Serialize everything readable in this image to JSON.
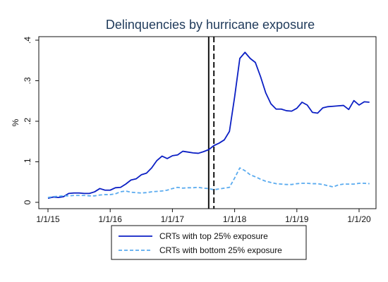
{
  "chart_data": {
    "type": "line",
    "title": "Delinquencies by hurricane exposure",
    "xlabel": "",
    "ylabel": "%",
    "x_tick_labels": [
      "1/1/15",
      "1/1/16",
      "1/1/17",
      "1/1/18",
      "1/1/19",
      "1/1/20"
    ],
    "y_tick_labels": [
      "0",
      ".1",
      ".2",
      ".3",
      ".4"
    ],
    "ylim": [
      0,
      0.4
    ],
    "xlim": [
      "2015-01",
      "2020-04"
    ],
    "grid": false,
    "legend_position": "bottom",
    "reference_lines": [
      {
        "x": "2017-08",
        "style": "solid",
        "color": "#111111"
      },
      {
        "x": "2017-09",
        "style": "dashed",
        "color": "#111111"
      }
    ],
    "x": [
      "2015-01",
      "2015-02",
      "2015-03",
      "2015-04",
      "2015-05",
      "2015-06",
      "2015-07",
      "2015-08",
      "2015-09",
      "2015-10",
      "2015-11",
      "2015-12",
      "2016-01",
      "2016-02",
      "2016-03",
      "2016-04",
      "2016-05",
      "2016-06",
      "2016-07",
      "2016-08",
      "2016-09",
      "2016-10",
      "2016-11",
      "2016-12",
      "2017-01",
      "2017-02",
      "2017-03",
      "2017-04",
      "2017-05",
      "2017-06",
      "2017-07",
      "2017-08",
      "2017-09",
      "2017-10",
      "2017-11",
      "2017-12",
      "2018-01",
      "2018-02",
      "2018-03",
      "2018-04",
      "2018-05",
      "2018-06",
      "2018-07",
      "2018-08",
      "2018-09",
      "2018-10",
      "2018-11",
      "2018-12",
      "2019-01",
      "2019-02",
      "2019-03",
      "2019-04",
      "2019-05",
      "2019-06",
      "2019-07",
      "2019-08",
      "2019-09",
      "2019-10",
      "2019-11",
      "2019-12",
      "2020-01",
      "2020-02",
      "2020-03"
    ],
    "series": [
      {
        "name": "CRTs with top 25% exposure",
        "color": "#0b1fc4",
        "style": "solid",
        "values": [
          0.01,
          0.013,
          0.012,
          0.014,
          0.022,
          0.023,
          0.023,
          0.022,
          0.022,
          0.026,
          0.034,
          0.03,
          0.03,
          0.036,
          0.037,
          0.045,
          0.055,
          0.058,
          0.068,
          0.072,
          0.085,
          0.103,
          0.114,
          0.108,
          0.115,
          0.117,
          0.126,
          0.124,
          0.122,
          0.121,
          0.125,
          0.13,
          0.14,
          0.146,
          0.154,
          0.175,
          0.26,
          0.355,
          0.37,
          0.355,
          0.345,
          0.31,
          0.27,
          0.243,
          0.23,
          0.23,
          0.226,
          0.225,
          0.232,
          0.247,
          0.24,
          0.222,
          0.22,
          0.233,
          0.236,
          0.237,
          0.238,
          0.239,
          0.229,
          0.251,
          0.24,
          0.248,
          0.247
        ]
      },
      {
        "name": "CRTs with bottom 25% exposure",
        "color": "#5aabef",
        "style": "dashed",
        "values": [
          0.012,
          0.014,
          0.015,
          0.016,
          0.016,
          0.017,
          0.017,
          0.017,
          0.016,
          0.016,
          0.018,
          0.019,
          0.019,
          0.021,
          0.026,
          0.028,
          0.025,
          0.024,
          0.023,
          0.024,
          0.026,
          0.027,
          0.028,
          0.03,
          0.034,
          0.037,
          0.035,
          0.036,
          0.036,
          0.037,
          0.035,
          0.034,
          0.031,
          0.033,
          0.035,
          0.037,
          0.06,
          0.085,
          0.078,
          0.068,
          0.063,
          0.057,
          0.052,
          0.049,
          0.046,
          0.045,
          0.044,
          0.044,
          0.046,
          0.047,
          0.047,
          0.046,
          0.046,
          0.044,
          0.041,
          0.038,
          0.043,
          0.045,
          0.045,
          0.045,
          0.047,
          0.047,
          0.046
        ]
      }
    ]
  }
}
